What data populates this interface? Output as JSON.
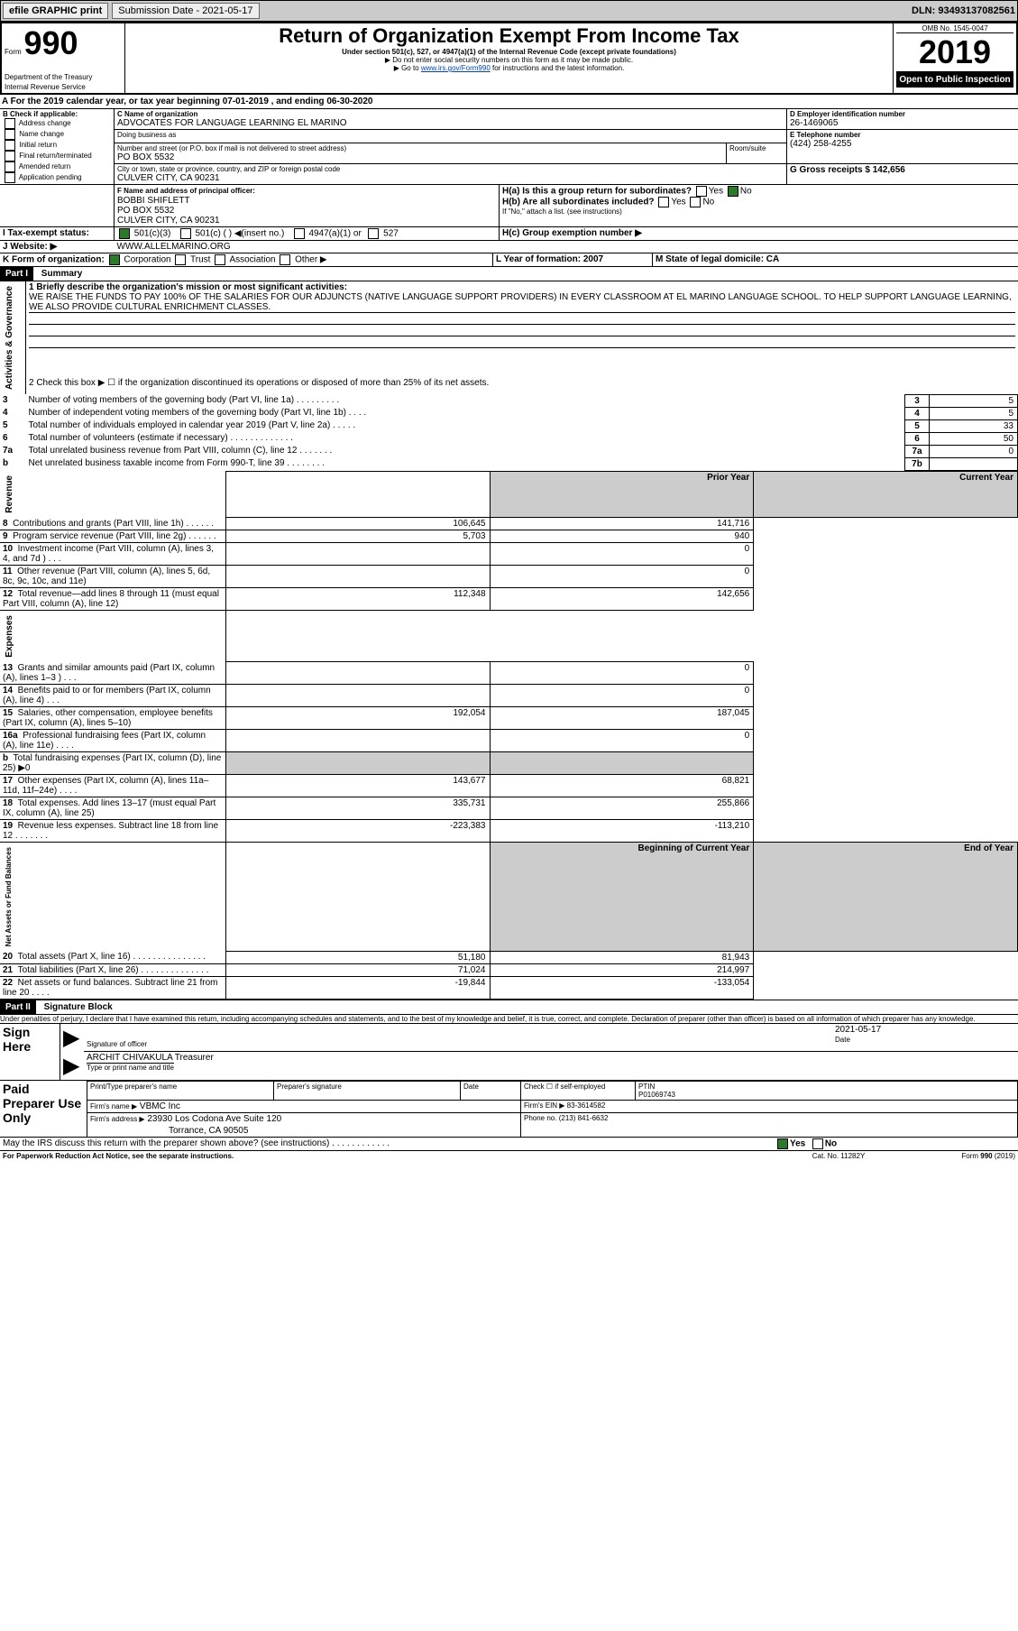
{
  "topbar": {
    "efile": "efile GRAPHIC print",
    "sub_label": "Submission Date - 2021-05-17",
    "dln": "DLN: 93493137082561"
  },
  "header": {
    "form": "Form",
    "f990": "990",
    "dept": "Department of the Treasury\nInternal Revenue Service",
    "title": "Return of Organization Exempt From Income Tax",
    "sub1": "Under section 501(c), 527, or 4947(a)(1) of the Internal Revenue Code (except private foundations)",
    "sub2": "▶ Do not enter social security numbers on this form as it may be made public.",
    "sub3": "▶ Go to www.irs.gov/Form990 for instructions and the latest information.",
    "sub3_link": "www.irs.gov/Form990",
    "omb": "OMB No. 1545-0047",
    "year": "2019",
    "open": "Open to Public Inspection"
  },
  "period": {
    "text": "A For the 2019 calendar year, or tax year beginning 07-01-2019    , and ending 06-30-2020"
  },
  "boxB": {
    "title": "B Check if applicable:",
    "items": [
      "Address change",
      "Name change",
      "Initial return",
      "Final return/terminated",
      "Amended return",
      "Application pending"
    ]
  },
  "boxC": {
    "label": "C Name of organization",
    "name": "ADVOCATES FOR LANGUAGE LEARNING EL MARINO",
    "dba_label": "Doing business as",
    "dba": "",
    "addr_label": "Number and street (or P.O. box if mail is not delivered to street address)",
    "room": "Room/suite",
    "addr": "PO BOX 5532",
    "city_label": "City or town, state or province, country, and ZIP or foreign postal code",
    "city": "CULVER CITY, CA  90231"
  },
  "boxD": {
    "label": "D Employer identification number",
    "val": "26-1469065"
  },
  "boxE": {
    "label": "E Telephone number",
    "val": "(424) 258-4255"
  },
  "boxG": {
    "label": "G Gross receipts $ 142,656"
  },
  "boxF": {
    "label": "F Name and address of principal officer:",
    "name": "BOBBI SHIFLETT",
    "addr1": "PO BOX 5532",
    "addr2": "CULVER CITY, CA  90231"
  },
  "boxH": {
    "ha": "H(a)  Is this a group return for subordinates?",
    "hb": "H(b)  Are all subordinates included?",
    "hb_note": "If \"No,\" attach a list. (see instructions)",
    "hc": "H(c)  Group exemption number ▶",
    "yes": "Yes",
    "no": "No"
  },
  "boxI": {
    "label": "I Tax-exempt status:",
    "opts": [
      "501(c)(3)",
      "501(c) (  ) ◀(insert no.)",
      "4947(a)(1) or",
      "527"
    ]
  },
  "boxJ": {
    "label": "J Website: ▶",
    "val": "WWW.ALLELMARINO.ORG"
  },
  "boxK": {
    "label": "K Form of organization:",
    "opts": [
      "Corporation",
      "Trust",
      "Association",
      "Other ▶"
    ]
  },
  "boxL": {
    "label": "L Year of formation: 2007"
  },
  "boxM": {
    "label": "M State of legal domicile: CA"
  },
  "partI": {
    "hdr": "Part I",
    "title": "Summary"
  },
  "summary": {
    "q1": "1  Briefly describe the organization's mission or most significant activities:",
    "mission": "WE RAISE THE FUNDS TO PAY 100% OF THE SALARIES FOR OUR ADJUNCTS (NATIVE LANGUAGE SUPPORT PROVIDERS) IN EVERY CLASSROOM AT EL MARINO LANGUAGE SCHOOL. TO HELP SUPPORT LANGUAGE LEARNING, WE ALSO PROVIDE CULTURAL ENRICHMENT CLASSES.",
    "q2": "2  Check this box ▶ ☐ if the organization discontinued its operations or disposed of more than 25% of its net assets.",
    "rows_top": [
      {
        "n": "3",
        "txt": "Number of voting members of the governing body (Part VI, line 1a)  .  .  .  .  .  .  .  .  .",
        "box": "3",
        "val": "5"
      },
      {
        "n": "4",
        "txt": "Number of independent voting members of the governing body (Part VI, line 1b)  .  .  .  .",
        "box": "4",
        "val": "5"
      },
      {
        "n": "5",
        "txt": "Total number of individuals employed in calendar year 2019 (Part V, line 2a)  .  .  .  .  .",
        "box": "5",
        "val": "33"
      },
      {
        "n": "6",
        "txt": "Total number of volunteers (estimate if necessary)  .  .  .  .  .  .  .  .  .  .  .  .  .",
        "box": "6",
        "val": "50"
      },
      {
        "n": "7a",
        "txt": "Total unrelated business revenue from Part VIII, column (C), line 12  .  .  .  .  .  .  .",
        "box": "7a",
        "val": "0"
      },
      {
        "n": "b",
        "txt": "Net unrelated business taxable income from Form 990-T, line 39  .  .  .  .  .  .  .  .",
        "box": "7b",
        "val": ""
      }
    ],
    "col_prior": "Prior Year",
    "col_current": "Current Year",
    "rev_label": "Revenue",
    "exp_label": "Expenses",
    "net_label": "Net Assets or Fund Balances",
    "act_label": "Activities & Governance",
    "rows_rev": [
      {
        "n": "8",
        "txt": "Contributions and grants (Part VIII, line 1h)  .  .  .  .  .  .",
        "py": "106,645",
        "cy": "141,716"
      },
      {
        "n": "9",
        "txt": "Program service revenue (Part VIII, line 2g)  .  .  .  .  .  .",
        "py": "5,703",
        "cy": "940"
      },
      {
        "n": "10",
        "txt": "Investment income (Part VIII, column (A), lines 3, 4, and 7d )  .  .  .",
        "py": "",
        "cy": "0"
      },
      {
        "n": "11",
        "txt": "Other revenue (Part VIII, column (A), lines 5, 6d, 8c, 9c, 10c, and 11e)",
        "py": "",
        "cy": "0"
      },
      {
        "n": "12",
        "txt": "Total revenue—add lines 8 through 11 (must equal Part VIII, column (A), line 12)",
        "py": "112,348",
        "cy": "142,656"
      }
    ],
    "rows_exp": [
      {
        "n": "13",
        "txt": "Grants and similar amounts paid (Part IX, column (A), lines 1–3 )  .  .  .",
        "py": "",
        "cy": "0"
      },
      {
        "n": "14",
        "txt": "Benefits paid to or for members (Part IX, column (A), line 4)  .  .  .",
        "py": "",
        "cy": "0"
      },
      {
        "n": "15",
        "txt": "Salaries, other compensation, employee benefits (Part IX, column (A), lines 5–10)",
        "py": "192,054",
        "cy": "187,045"
      },
      {
        "n": "16a",
        "txt": "Professional fundraising fees (Part IX, column (A), line 11e)  .  .  .  .",
        "py": "",
        "cy": "0"
      },
      {
        "n": "b",
        "txt": "Total fundraising expenses (Part IX, column (D), line 25) ▶0",
        "py": "shade",
        "cy": "shade"
      },
      {
        "n": "17",
        "txt": "Other expenses (Part IX, column (A), lines 11a–11d, 11f–24e)  .  .  .  .",
        "py": "143,677",
        "cy": "68,821"
      },
      {
        "n": "18",
        "txt": "Total expenses. Add lines 13–17 (must equal Part IX, column (A), line 25)",
        "py": "335,731",
        "cy": "255,866"
      },
      {
        "n": "19",
        "txt": "Revenue less expenses. Subtract line 18 from line 12  .  .  .  .  .  .  .",
        "py": "-223,383",
        "cy": "-113,210"
      }
    ],
    "col_boy": "Beginning of Current Year",
    "col_eoy": "End of Year",
    "rows_net": [
      {
        "n": "20",
        "txt": "Total assets (Part X, line 16)  .  .  .  .  .  .  .  .  .  .  .  .  .  .  .",
        "py": "51,180",
        "cy": "81,943"
      },
      {
        "n": "21",
        "txt": "Total liabilities (Part X, line 26)  .  .  .  .  .  .  .  .  .  .  .  .  .  .",
        "py": "71,024",
        "cy": "214,997"
      },
      {
        "n": "22",
        "txt": "Net assets or fund balances. Subtract line 21 from line 20  .  .  .  .",
        "py": "-19,844",
        "cy": "-133,054"
      }
    ]
  },
  "partII": {
    "hdr": "Part II",
    "title": "Signature Block",
    "decl": "Under penalties of perjury, I declare that I have examined this return, including accompanying schedules and statements, and to the best of my knowledge and belief, it is true, correct, and complete. Declaration of preparer (other than officer) is based on all information of which preparer has any knowledge."
  },
  "sign": {
    "sign_here": "Sign Here",
    "sig_officer": "Signature of officer",
    "date": "Date",
    "date_val": "2021-05-17",
    "name": "ARCHIT CHIVAKULA  Treasurer",
    "name_lbl": "Type or print name and title"
  },
  "paid": {
    "title": "Paid Preparer Use Only",
    "print_name": "Print/Type preparer's name",
    "prep_sig": "Preparer's signature",
    "date": "Date",
    "check": "Check ☐ if self-employed",
    "ptin": "PTIN",
    "ptin_val": "P01069743",
    "firm_name": "Firm's name    ▶",
    "firm_name_val": "VBMC Inc",
    "firm_ein": "Firm's EIN ▶ 83-3614582",
    "firm_addr": "Firm's address ▶",
    "firm_addr_val": "23930 Los Codona Ave Suite 120",
    "firm_city": "Torrance, CA  90505",
    "phone": "Phone no. (213) 841-6632"
  },
  "footer": {
    "discuss": "May the IRS discuss this return with the preparer shown above? (see instructions)  .  .  .  .  .  .  .  .  .  .  .  .",
    "yes": "Yes",
    "no": "No",
    "paperwork": "For Paperwork Reduction Act Notice, see the separate instructions.",
    "cat": "Cat. No. 11282Y",
    "form": "Form 990 (2019)"
  }
}
